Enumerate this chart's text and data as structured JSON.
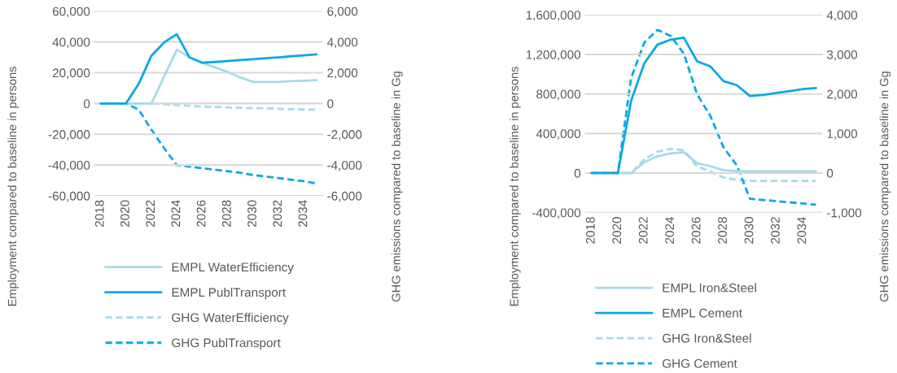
{
  "chart_data": [
    {
      "type": "line",
      "xlabel": null,
      "ylabel": "Employment compared to baseline in persons",
      "y2label": "GHG emissions compared to baseline in Gg",
      "x": [
        2018,
        2019,
        2020,
        2021,
        2022,
        2023,
        2024,
        2025,
        2026,
        2027,
        2028,
        2029,
        2030,
        2031,
        2032,
        2033,
        2034,
        2035
      ],
      "xlim": [
        2017.5,
        2035.5
      ],
      "xticks": [
        2018,
        2020,
        2022,
        2024,
        2026,
        2028,
        2030,
        2032,
        2034
      ],
      "ylim": [
        -60000,
        60000
      ],
      "yticks": [
        {
          "value": -60000,
          "label": "-60,000"
        },
        {
          "value": -40000,
          "label": "-40,000"
        },
        {
          "value": -20000,
          "label": "-20,000"
        },
        {
          "value": 0,
          "label": "0"
        },
        {
          "value": 20000,
          "label": "20,000"
        },
        {
          "value": 40000,
          "label": "40,000"
        },
        {
          "value": 60000,
          "label": "60,000"
        }
      ],
      "y2lim": [
        -6000,
        6000
      ],
      "y2ticks": [
        {
          "value": -6000,
          "label": "-6,000"
        },
        {
          "value": -4000,
          "label": "-4,000"
        },
        {
          "value": -2000,
          "label": "-2,000"
        },
        {
          "value": 0,
          "label": "0"
        },
        {
          "value": 2000,
          "label": "2,000"
        },
        {
          "value": 4000,
          "label": "4,000"
        },
        {
          "value": 6000,
          "label": "6,000"
        }
      ],
      "grid": "y",
      "legend": "bottom",
      "series": [
        {
          "name": "EMPL WaterEfficiency",
          "color": "#a3dcea",
          "line_style": "solid",
          "values": [
            0,
            0,
            0,
            0,
            0,
            17500,
            35000,
            30000,
            26500,
            23500,
            20500,
            17000,
            14000,
            14000,
            14000,
            14500,
            14800,
            15200
          ]
        },
        {
          "name": "EMPL PublTransport",
          "color": "#0ba8e6",
          "line_style": "solid",
          "values": [
            0,
            0,
            0,
            12700,
            31000,
            39700,
            45000,
            30000,
            26500,
            27000,
            27600,
            28200,
            28800,
            29400,
            30000,
            30700,
            31300,
            32000
          ]
        },
        {
          "name": "GHG WaterEfficiency",
          "color": "#a3dcea",
          "line_style": "dashed",
          "axis": "y2",
          "values": [
            0,
            0,
            0,
            0,
            0,
            -50,
            -100,
            -150,
            -200,
            -220,
            -250,
            -280,
            -300,
            -310,
            -350,
            -370,
            -390,
            -400
          ]
        },
        {
          "name": "GHG PublTransport",
          "color": "#0ba8e6",
          "line_style": "dashed",
          "axis": "y2",
          "values": [
            0,
            0,
            0,
            -400,
            -1700,
            -2900,
            -4000,
            -4100,
            -4200,
            -4300,
            -4400,
            -4500,
            -4650,
            -4750,
            -4850,
            -4950,
            -5050,
            -5200
          ]
        }
      ]
    },
    {
      "type": "line",
      "xlabel": null,
      "ylabel": "Employment compared to baseline in persons",
      "y2label": "GHG emissions compared to baseline in Gg",
      "x": [
        2018,
        2019,
        2020,
        2021,
        2022,
        2023,
        2024,
        2025,
        2026,
        2027,
        2028,
        2029,
        2030,
        2031,
        2032,
        2033,
        2034,
        2035
      ],
      "xlim": [
        2017.5,
        2035.5
      ],
      "xticks": [
        2018,
        2020,
        2022,
        2024,
        2026,
        2028,
        2030,
        2032,
        2034
      ],
      "ylim": [
        -400000,
        1600000
      ],
      "yticks": [
        {
          "value": -400000,
          "label": "-400,000"
        },
        {
          "value": 0,
          "label": "0"
        },
        {
          "value": 400000,
          "label": "400,000"
        },
        {
          "value": 800000,
          "label": "800,000"
        },
        {
          "value": 1200000,
          "label": "1,200,000"
        },
        {
          "value": 1600000,
          "label": "1,600,000"
        }
      ],
      "y2lim": [
        -1000,
        4000
      ],
      "y2ticks": [
        {
          "value": -1000,
          "label": "-1,000"
        },
        {
          "value": 0,
          "label": "0"
        },
        {
          "value": 1000,
          "label": "1,000"
        },
        {
          "value": 2000,
          "label": "2,000"
        },
        {
          "value": 3000,
          "label": "3,000"
        },
        {
          "value": 4000,
          "label": "4,000"
        }
      ],
      "grid": "y",
      "legend": "bottom",
      "series": [
        {
          "name": "EMPL Iron&Steel",
          "color": "#a3dcea",
          "line_style": "solid",
          "values": [
            0,
            0,
            0,
            0,
            110000,
            170000,
            200000,
            210000,
            100000,
            70000,
            30000,
            20000,
            20000,
            20000,
            20000,
            20000,
            20000,
            20000
          ]
        },
        {
          "name": "EMPL Cement",
          "color": "#0ba8e6",
          "line_style": "solid",
          "values": [
            0,
            0,
            0,
            730000,
            1110000,
            1300000,
            1350000,
            1370000,
            1130000,
            1080000,
            930000,
            890000,
            780000,
            790000,
            810000,
            830000,
            850000,
            860000
          ]
        },
        {
          "name": "GHG Iron&Steel",
          "color": "#a3dcea",
          "line_style": "dashed",
          "axis": "y2",
          "values": [
            0,
            0,
            0,
            0,
            350,
            540,
            610,
            580,
            170,
            40,
            -110,
            -170,
            -200,
            -200,
            -200,
            -200,
            -200,
            -200
          ]
        },
        {
          "name": "GHG Cement",
          "color": "#0ba8e6",
          "line_style": "dashed",
          "axis": "y2",
          "values": [
            0,
            0,
            0,
            2400,
            3300,
            3620,
            3470,
            3020,
            1990,
            1450,
            650,
            200,
            -650,
            -680,
            -710,
            -740,
            -770,
            -800
          ]
        }
      ]
    }
  ]
}
